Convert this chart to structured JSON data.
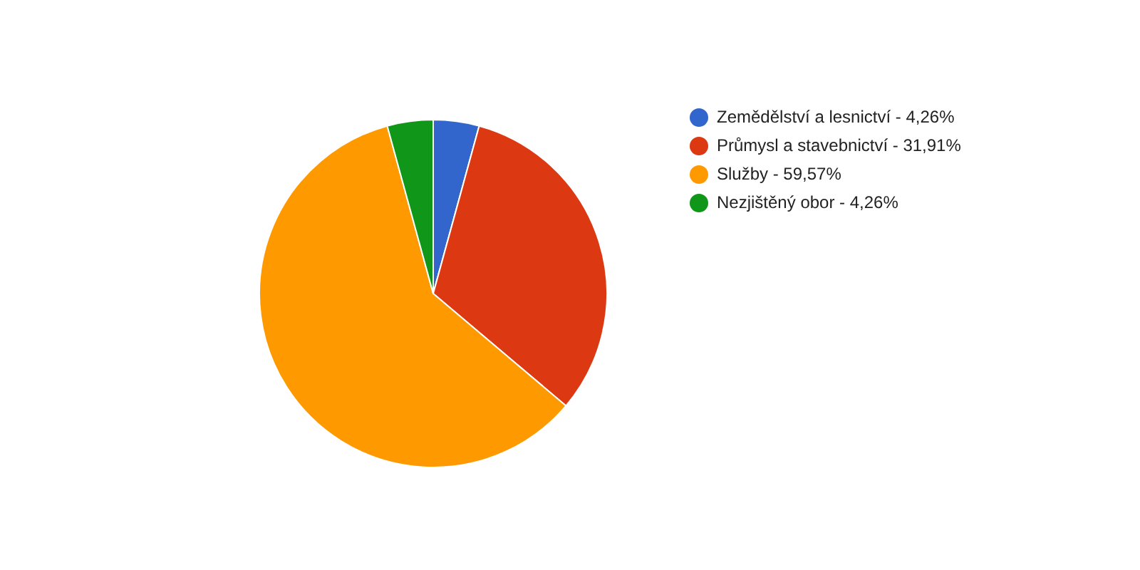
{
  "chart_data": {
    "type": "pie",
    "categories": [
      "Zemědělství a lesnictví - 4,26%",
      "Průmysl a stavebnictví - 31,91%",
      "Služby - 59,57%",
      "Nezjištěný obor - 4,26%"
    ],
    "values": [
      4.26,
      31.91,
      59.57,
      4.26
    ],
    "colors": [
      "#3366cc",
      "#dc3912",
      "#ff9900",
      "#109618"
    ],
    "legend": "right"
  }
}
